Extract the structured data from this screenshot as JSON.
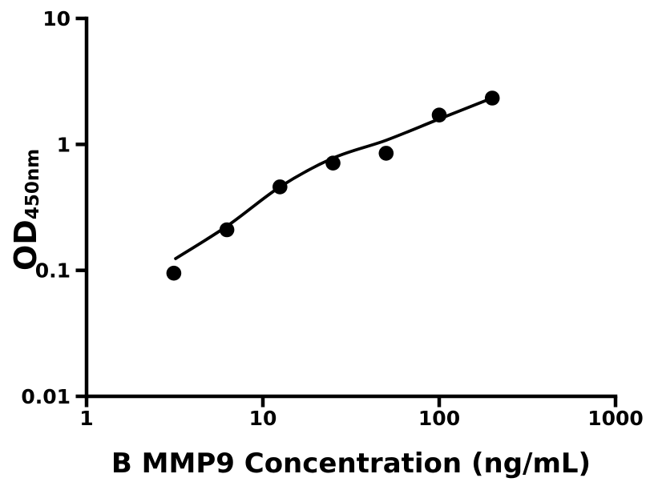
{
  "figure": {
    "background_color": "#ffffff",
    "foreground_color": "#000000"
  },
  "chart_data": {
    "type": "scatter",
    "title": "",
    "xlabel": "B MMP9 Concentration (ng/mL)",
    "ylabel": "OD",
    "ylabel_subscript": "450nm",
    "xscale": "log",
    "yscale": "log",
    "xlim": [
      1,
      1000
    ],
    "ylim": [
      0.01,
      10
    ],
    "grid": false,
    "legend": "none",
    "xticks": [
      {
        "value": 1,
        "label": "1"
      },
      {
        "value": 10,
        "label": "10"
      },
      {
        "value": 100,
        "label": "100"
      },
      {
        "value": 1000,
        "label": "1000"
      }
    ],
    "yticks": [
      {
        "value": 0.01,
        "label": "0.01"
      },
      {
        "value": 0.1,
        "label": "0.1"
      },
      {
        "value": 1,
        "label": "1"
      },
      {
        "value": 10,
        "label": "10"
      }
    ],
    "series": [
      {
        "name": "standard-points",
        "type": "scatter",
        "marker": "filled-circle",
        "color": "#000000",
        "points": [
          {
            "x": 3.125,
            "y": 0.095
          },
          {
            "x": 6.25,
            "y": 0.21
          },
          {
            "x": 12.5,
            "y": 0.46
          },
          {
            "x": 25,
            "y": 0.71
          },
          {
            "x": 50,
            "y": 0.85
          },
          {
            "x": 100,
            "y": 1.71
          },
          {
            "x": 200,
            "y": 2.33
          }
        ]
      },
      {
        "name": "fit-curve",
        "type": "line",
        "color": "#000000",
        "points": [
          {
            "x": 3.2,
            "y": 0.124
          },
          {
            "x": 6.3,
            "y": 0.226
          },
          {
            "x": 12.6,
            "y": 0.463
          },
          {
            "x": 25.1,
            "y": 0.78
          },
          {
            "x": 50.1,
            "y": 1.08
          },
          {
            "x": 101,
            "y": 1.6
          },
          {
            "x": 202,
            "y": 2.35
          }
        ]
      }
    ]
  }
}
